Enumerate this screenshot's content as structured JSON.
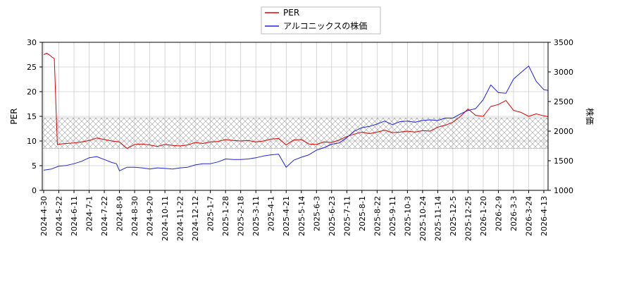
{
  "chart_data": {
    "type": "line",
    "title": "",
    "legend": {
      "placement": "top-center",
      "entries": [
        {
          "label": "PER",
          "color": "#dd0000"
        },
        {
          "label": "アルコニックスの株価",
          "color": "#2222dd"
        }
      ]
    },
    "y_left": {
      "label": "PER",
      "range": [
        0,
        30
      ],
      "ticks": [
        0,
        5,
        10,
        15,
        20,
        25,
        30
      ]
    },
    "y_right": {
      "label": "株価",
      "range": [
        1000,
        3500
      ],
      "ticks": [
        1000,
        1500,
        2000,
        2500,
        3000,
        3500
      ]
    },
    "x_ticks": [
      "2024-4-30",
      "2024-5-22",
      "2024-6-11",
      "2024-7-1",
      "2024-7-22",
      "2024-8-9",
      "2024-8-30",
      "2024-9-20",
      "2024-10-11",
      "2024-11-22",
      "2024-12-12",
      "2025-1-7",
      "2025-1-28",
      "2025-2-18",
      "2025-3-11",
      "2025-4-1",
      "2025-4-21",
      "2025-5-14",
      "2025-6-3",
      "2025-6-23",
      "2025-7-11",
      "2025-8-1",
      "2025-8-22",
      "2025-9-11",
      "2025-10-3",
      "2025-10-24",
      "2025-11-14",
      "2025-12-5",
      "2025-12-25",
      "2026-1-20",
      "2026-2-9",
      "2026-3-3",
      "2026-3-24",
      "2026-4-13"
    ],
    "band": {
      "axis": "left",
      "from": 8.5,
      "to": 14.7,
      "pattern": "crosshatch"
    },
    "grid": true,
    "series": [
      {
        "name": "PER",
        "axis": "left",
        "color": "#dd0000",
        "x": [
          0,
          0.2,
          0.4,
          0.55,
          0.7,
          0.8,
          0.9,
          1.1,
          1.5,
          2,
          2.5,
          3,
          3.5,
          4,
          4.5,
          5,
          5.5,
          6,
          6.5,
          7,
          7.5,
          8,
          8.5,
          9,
          9.5,
          10,
          10.5,
          11,
          11.5,
          12,
          12.5,
          13,
          13.5,
          14,
          14.5,
          15,
          15.5,
          16,
          16.5,
          17,
          17.5,
          18,
          18.5,
          19,
          19.5,
          20,
          20.5,
          21,
          21.5,
          22,
          22.5,
          23,
          23.5,
          24,
          24.5,
          25,
          25.5,
          26,
          26.5,
          27,
          27.5,
          28,
          28.5,
          29,
          29.5,
          30,
          30.5,
          31,
          31.5,
          32,
          32.5,
          33,
          33.5,
          34
        ],
        "y": [
          27.5,
          27.8,
          27.4,
          27.0,
          26.7,
          18.0,
          9.3,
          9.4,
          9.5,
          9.6,
          9.8,
          10.1,
          10.6,
          10.3,
          10.0,
          9.8,
          8.5,
          9.3,
          9.4,
          9.2,
          8.9,
          9.3,
          9.1,
          9.0,
          9.2,
          9.7,
          9.5,
          9.8,
          9.9,
          10.3,
          10.1,
          10.0,
          10.1,
          9.8,
          10.0,
          10.4,
          10.5,
          9.2,
          10.2,
          10.3,
          9.4,
          9.3,
          9.8,
          9.7,
          10.2,
          10.9,
          11.4,
          11.8,
          11.5,
          11.8,
          12.2,
          11.7,
          11.8,
          12.0,
          11.8,
          12.1,
          12.0,
          12.8,
          13.2,
          13.8,
          15.0,
          16.5,
          15.2,
          15.0,
          17.0,
          17.4,
          18.2,
          16.2,
          15.8,
          15.0,
          15.5,
          15.1,
          14.8,
          13.8
        ]
      },
      {
        "name": "アルコニックスの株価",
        "axis": "right",
        "color": "#2222dd",
        "x": [
          0,
          0.5,
          1,
          1.5,
          2,
          2.5,
          3,
          3.5,
          4,
          4.5,
          4.8,
          5,
          5.5,
          6,
          6.5,
          7,
          7.5,
          8,
          8.5,
          9,
          9.5,
          10,
          10.5,
          11,
          11.5,
          12,
          12.5,
          13,
          13.5,
          14,
          14.5,
          15,
          15.5,
          16,
          16.5,
          17,
          17.5,
          18,
          18.5,
          19,
          19.5,
          20,
          20.5,
          21,
          21.5,
          22,
          22.5,
          23,
          23.5,
          24,
          24.5,
          25,
          25.5,
          26,
          26.5,
          27,
          27.5,
          28,
          28.5,
          29,
          29.5,
          30,
          30.5,
          31,
          31.5,
          32,
          32.5,
          33,
          33.5,
          34
        ],
        "y": [
          1340,
          1360,
          1410,
          1420,
          1450,
          1490,
          1550,
          1570,
          1520,
          1470,
          1450,
          1330,
          1390,
          1390,
          1380,
          1360,
          1380,
          1370,
          1360,
          1380,
          1390,
          1430,
          1450,
          1450,
          1480,
          1530,
          1520,
          1520,
          1530,
          1550,
          1580,
          1600,
          1610,
          1390,
          1510,
          1560,
          1600,
          1680,
          1720,
          1780,
          1800,
          1890,
          2000,
          2060,
          2080,
          2120,
          2170,
          2110,
          2160,
          2170,
          2150,
          2180,
          2190,
          2180,
          2220,
          2220,
          2290,
          2350,
          2380,
          2530,
          2780,
          2650,
          2640,
          2880,
          2990,
          3100,
          2840,
          2700,
          2680,
          2600
        ]
      }
    ]
  }
}
